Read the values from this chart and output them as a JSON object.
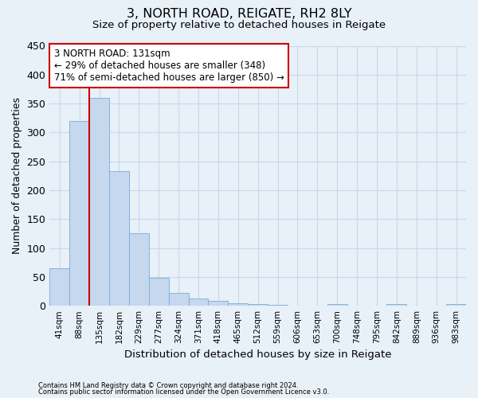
{
  "title1": "3, NORTH ROAD, REIGATE, RH2 8LY",
  "title2": "Size of property relative to detached houses in Reigate",
  "xlabel": "Distribution of detached houses by size in Reigate",
  "ylabel": "Number of detached properties",
  "categories": [
    "41sqm",
    "88sqm",
    "135sqm",
    "182sqm",
    "229sqm",
    "277sqm",
    "324sqm",
    "371sqm",
    "418sqm",
    "465sqm",
    "512sqm",
    "559sqm",
    "606sqm",
    "653sqm",
    "700sqm",
    "748sqm",
    "795sqm",
    "842sqm",
    "889sqm",
    "936sqm",
    "983sqm"
  ],
  "bar_heights": [
    65,
    320,
    360,
    233,
    125,
    49,
    22,
    13,
    8,
    5,
    3,
    1,
    0,
    0,
    3,
    0,
    0,
    3,
    0,
    0,
    3
  ],
  "bar_color": "#c5d8ee",
  "bar_edge_color": "#7aacd4",
  "grid_color": "#c8d8ea",
  "background_color": "#e8f0f8",
  "vline_pos": 1.5,
  "vline_color": "#cc0000",
  "annotation_line1": "3 NORTH ROAD: 131sqm",
  "annotation_line2": "← 29% of detached houses are smaller (348)",
  "annotation_line3": "71% of semi-detached houses are larger (850) →",
  "annotation_box_color": "#ffffff",
  "annotation_box_edge_color": "#cc0000",
  "ylim": [
    0,
    450
  ],
  "yticks": [
    0,
    50,
    100,
    150,
    200,
    250,
    300,
    350,
    400,
    450
  ],
  "footer1": "Contains HM Land Registry data © Crown copyright and database right 2024.",
  "footer2": "Contains public sector information licensed under the Open Government Licence v3.0."
}
